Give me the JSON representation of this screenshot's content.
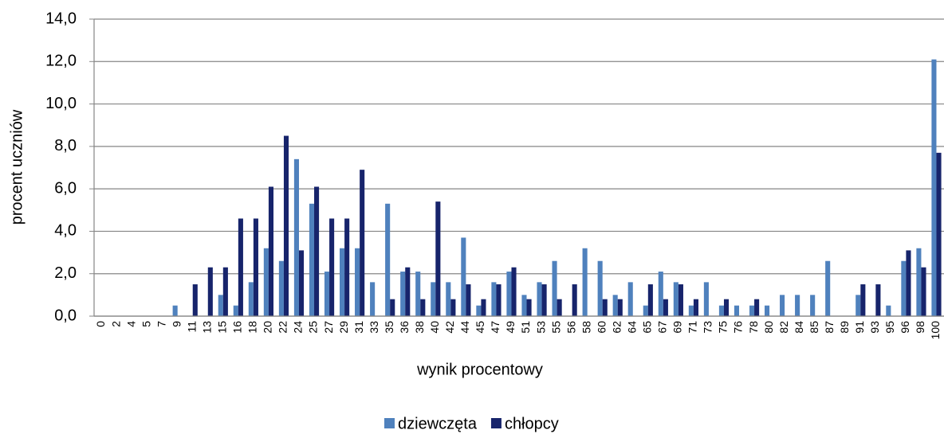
{
  "chart_data": {
    "type": "bar",
    "y_label": "procent uczniów",
    "x_label": "wynik procentowy",
    "categories": [
      "0",
      "2",
      "4",
      "5",
      "7",
      "9",
      "11",
      "13",
      "15",
      "16",
      "18",
      "20",
      "22",
      "24",
      "25",
      "27",
      "29",
      "31",
      "33",
      "35",
      "36",
      "38",
      "40",
      "42",
      "44",
      "45",
      "47",
      "49",
      "51",
      "53",
      "55",
      "56",
      "58",
      "60",
      "62",
      "64",
      "65",
      "67",
      "69",
      "71",
      "73",
      "75",
      "76",
      "78",
      "80",
      "82",
      "84",
      "85",
      "87",
      "89",
      "91",
      "93",
      "95",
      "96",
      "98",
      "100"
    ],
    "series": [
      {
        "name": "dziewczęta",
        "color": "#4f81bd",
        "values": [
          0,
          0,
          0,
          0,
          0,
          0.5,
          0,
          0,
          1.0,
          0.5,
          1.6,
          3.2,
          2.6,
          7.4,
          5.3,
          2.1,
          3.2,
          3.2,
          1.6,
          5.3,
          2.1,
          2.1,
          1.6,
          1.6,
          3.7,
          0.5,
          1.6,
          2.1,
          1.0,
          1.6,
          2.6,
          0,
          3.2,
          2.6,
          1.0,
          1.6,
          0.5,
          2.1,
          1.6,
          0.5,
          1.6,
          0.5,
          0.5,
          0.5,
          0.5,
          1.0,
          1.0,
          1.0,
          2.6,
          0,
          1.0,
          0,
          0.5,
          2.6,
          3.2,
          12.1
        ]
      },
      {
        "name": "chłopcy",
        "color": "#17246b",
        "values": [
          0,
          0,
          0,
          0,
          0,
          0,
          1.5,
          2.3,
          2.3,
          4.6,
          4.6,
          6.1,
          8.5,
          3.1,
          6.1,
          4.6,
          4.6,
          6.9,
          0,
          0.8,
          2.3,
          0.8,
          5.4,
          0.8,
          1.5,
          0.8,
          1.5,
          2.3,
          0.8,
          1.5,
          0.8,
          1.5,
          0,
          0.8,
          0.8,
          0,
          1.5,
          0.8,
          1.5,
          0.8,
          0,
          0.8,
          0,
          0.8,
          0,
          0,
          0,
          0,
          0,
          0,
          1.5,
          1.5,
          0,
          3.1,
          2.3,
          7.7
        ]
      }
    ],
    "ylim": [
      0,
      14
    ],
    "yticks": [
      {
        "value": 0,
        "label": "0,0"
      },
      {
        "value": 2,
        "label": "2,0"
      },
      {
        "value": 4,
        "label": "4,0"
      },
      {
        "value": 6,
        "label": "6,0"
      },
      {
        "value": 8,
        "label": "8,0"
      },
      {
        "value": 10,
        "label": "10,0"
      },
      {
        "value": 12,
        "label": "12,0"
      },
      {
        "value": 14,
        "label": "14,0"
      }
    ],
    "grid": true,
    "legend": "bottom"
  }
}
